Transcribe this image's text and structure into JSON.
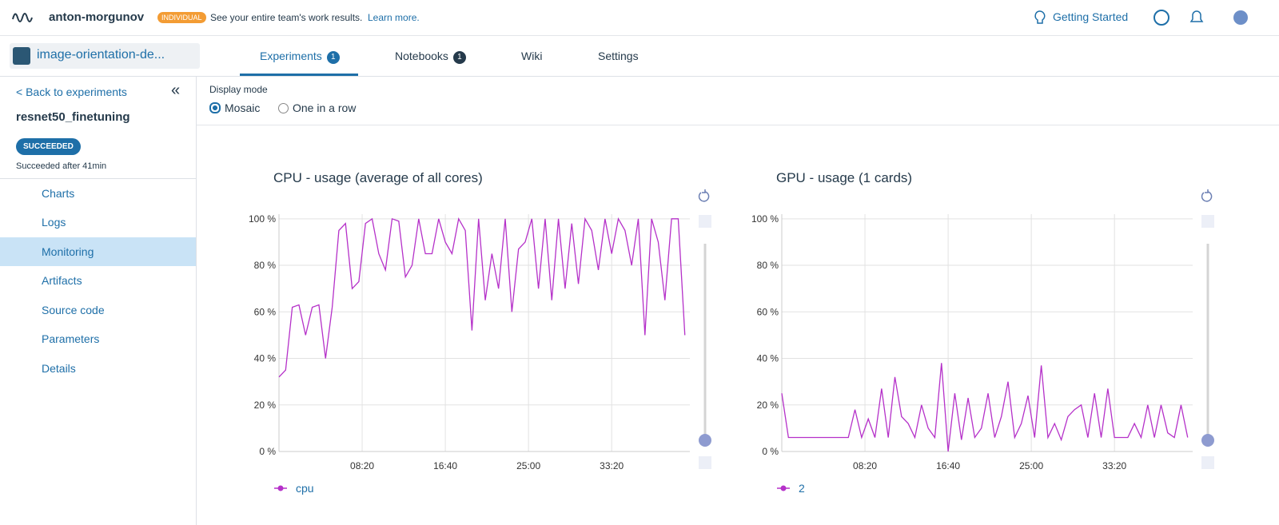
{
  "header": {
    "brand": "anton-morgunov",
    "badge": "INDIVIDUAL",
    "notice": "See your entire team's work results.",
    "link": "Learn more.",
    "help": "Getting Started"
  },
  "project": "image-orientation-de...",
  "tabs": [
    {
      "label": "Experiments",
      "count": 1
    },
    {
      "label": "Notebooks",
      "count": 1
    },
    {
      "label": "Wiki"
    },
    {
      "label": "Settings"
    }
  ],
  "sidebar": {
    "back": "< Back to experiments",
    "experiment": "resnet50_finetuning",
    "status": "SUCCEEDED",
    "status_note": "Succeeded after 41min",
    "menu": [
      "Charts",
      "Logs",
      "Monitoring",
      "Artifacts",
      "Source code",
      "Parameters",
      "Details"
    ]
  },
  "display_mode": {
    "label": "Display mode",
    "options": [
      "Mosaic",
      "One in a row"
    ]
  },
  "chart_data": [
    {
      "type": "line",
      "title": "CPU - usage (average of all cores)",
      "x": [
        0,
        40,
        80,
        120,
        160,
        200,
        240,
        280,
        320,
        360,
        400,
        440,
        480,
        520,
        560,
        600,
        640,
        680,
        720,
        760,
        800,
        840,
        880,
        920,
        960,
        1000,
        1040,
        1080,
        1120,
        1160,
        1200,
        1240,
        1280,
        1320,
        1360,
        1400,
        1440,
        1480,
        1520,
        1560,
        1600,
        1640,
        1680,
        1720,
        1760,
        1800,
        1840,
        1880,
        1920,
        1960,
        2000,
        2040,
        2080,
        2120,
        2160,
        2200,
        2240,
        2280,
        2320,
        2360,
        2400,
        2440
      ],
      "series": [
        {
          "name": "cpu",
          "color": "#b531c9",
          "values": [
            32,
            35,
            62,
            63,
            50,
            62,
            63,
            40,
            62,
            95,
            98,
            70,
            73,
            98,
            100,
            85,
            78,
            100,
            99,
            75,
            80,
            100,
            85,
            85,
            100,
            90,
            85,
            100,
            95,
            52,
            100,
            65,
            85,
            70,
            100,
            60,
            87,
            90,
            100,
            70,
            100,
            65,
            100,
            70,
            98,
            72,
            100,
            95,
            78,
            100,
            85,
            100,
            95,
            80,
            100,
            50,
            100,
            90,
            65,
            100,
            100,
            50
          ]
        }
      ],
      "xlim": [
        0,
        2470
      ],
      "ylim": [
        0,
        102
      ],
      "xticks": [
        {
          "value": 500,
          "label": "08:20"
        },
        {
          "value": 1000,
          "label": "16:40"
        },
        {
          "value": 1500,
          "label": "25:00"
        },
        {
          "value": 2000,
          "label": "33:20"
        }
      ],
      "yticks": [
        {
          "value": 0,
          "label": "0 %"
        },
        {
          "value": 20,
          "label": "20 %"
        },
        {
          "value": 40,
          "label": "40 %"
        },
        {
          "value": 60,
          "label": "60 %"
        },
        {
          "value": 80,
          "label": "80 %"
        },
        {
          "value": 100,
          "label": "100 %"
        }
      ],
      "grid": true
    },
    {
      "type": "line",
      "title": "GPU - usage (1 cards)",
      "x": [
        0,
        40,
        80,
        120,
        160,
        200,
        240,
        280,
        320,
        360,
        400,
        440,
        480,
        520,
        560,
        600,
        640,
        680,
        720,
        760,
        800,
        840,
        880,
        920,
        960,
        1000,
        1040,
        1080,
        1120,
        1160,
        1200,
        1240,
        1280,
        1320,
        1360,
        1400,
        1440,
        1480,
        1520,
        1560,
        1600,
        1640,
        1680,
        1720,
        1760,
        1800,
        1840,
        1880,
        1920,
        1960,
        2000,
        2040,
        2080,
        2120,
        2160,
        2200,
        2240,
        2280,
        2320,
        2360,
        2400,
        2440
      ],
      "series": [
        {
          "name": "2",
          "color": "#b531c9",
          "values": [
            25,
            6,
            6,
            6,
            6,
            6,
            6,
            6,
            6,
            6,
            6,
            18,
            6,
            14,
            6,
            27,
            6,
            32,
            15,
            12,
            6,
            20,
            10,
            6,
            38,
            0,
            25,
            5,
            23,
            6,
            10,
            25,
            6,
            15,
            30,
            6,
            12,
            24,
            6,
            37,
            6,
            12,
            5,
            15,
            18,
            20,
            6,
            25,
            6,
            27,
            6,
            6,
            6,
            12,
            6,
            20,
            6,
            20,
            8,
            6,
            20,
            6
          ]
        }
      ],
      "xlim": [
        0,
        2470
      ],
      "ylim": [
        0,
        102
      ],
      "xticks": [
        {
          "value": 500,
          "label": "08:20"
        },
        {
          "value": 1000,
          "label": "16:40"
        },
        {
          "value": 1500,
          "label": "25:00"
        },
        {
          "value": 2000,
          "label": "33:20"
        }
      ],
      "yticks": [
        {
          "value": 0,
          "label": "0 %"
        },
        {
          "value": 20,
          "label": "20 %"
        },
        {
          "value": 40,
          "label": "40 %"
        },
        {
          "value": 60,
          "label": "60 %"
        },
        {
          "value": 80,
          "label": "80 %"
        },
        {
          "value": 100,
          "label": "100 %"
        }
      ],
      "grid": true
    }
  ]
}
